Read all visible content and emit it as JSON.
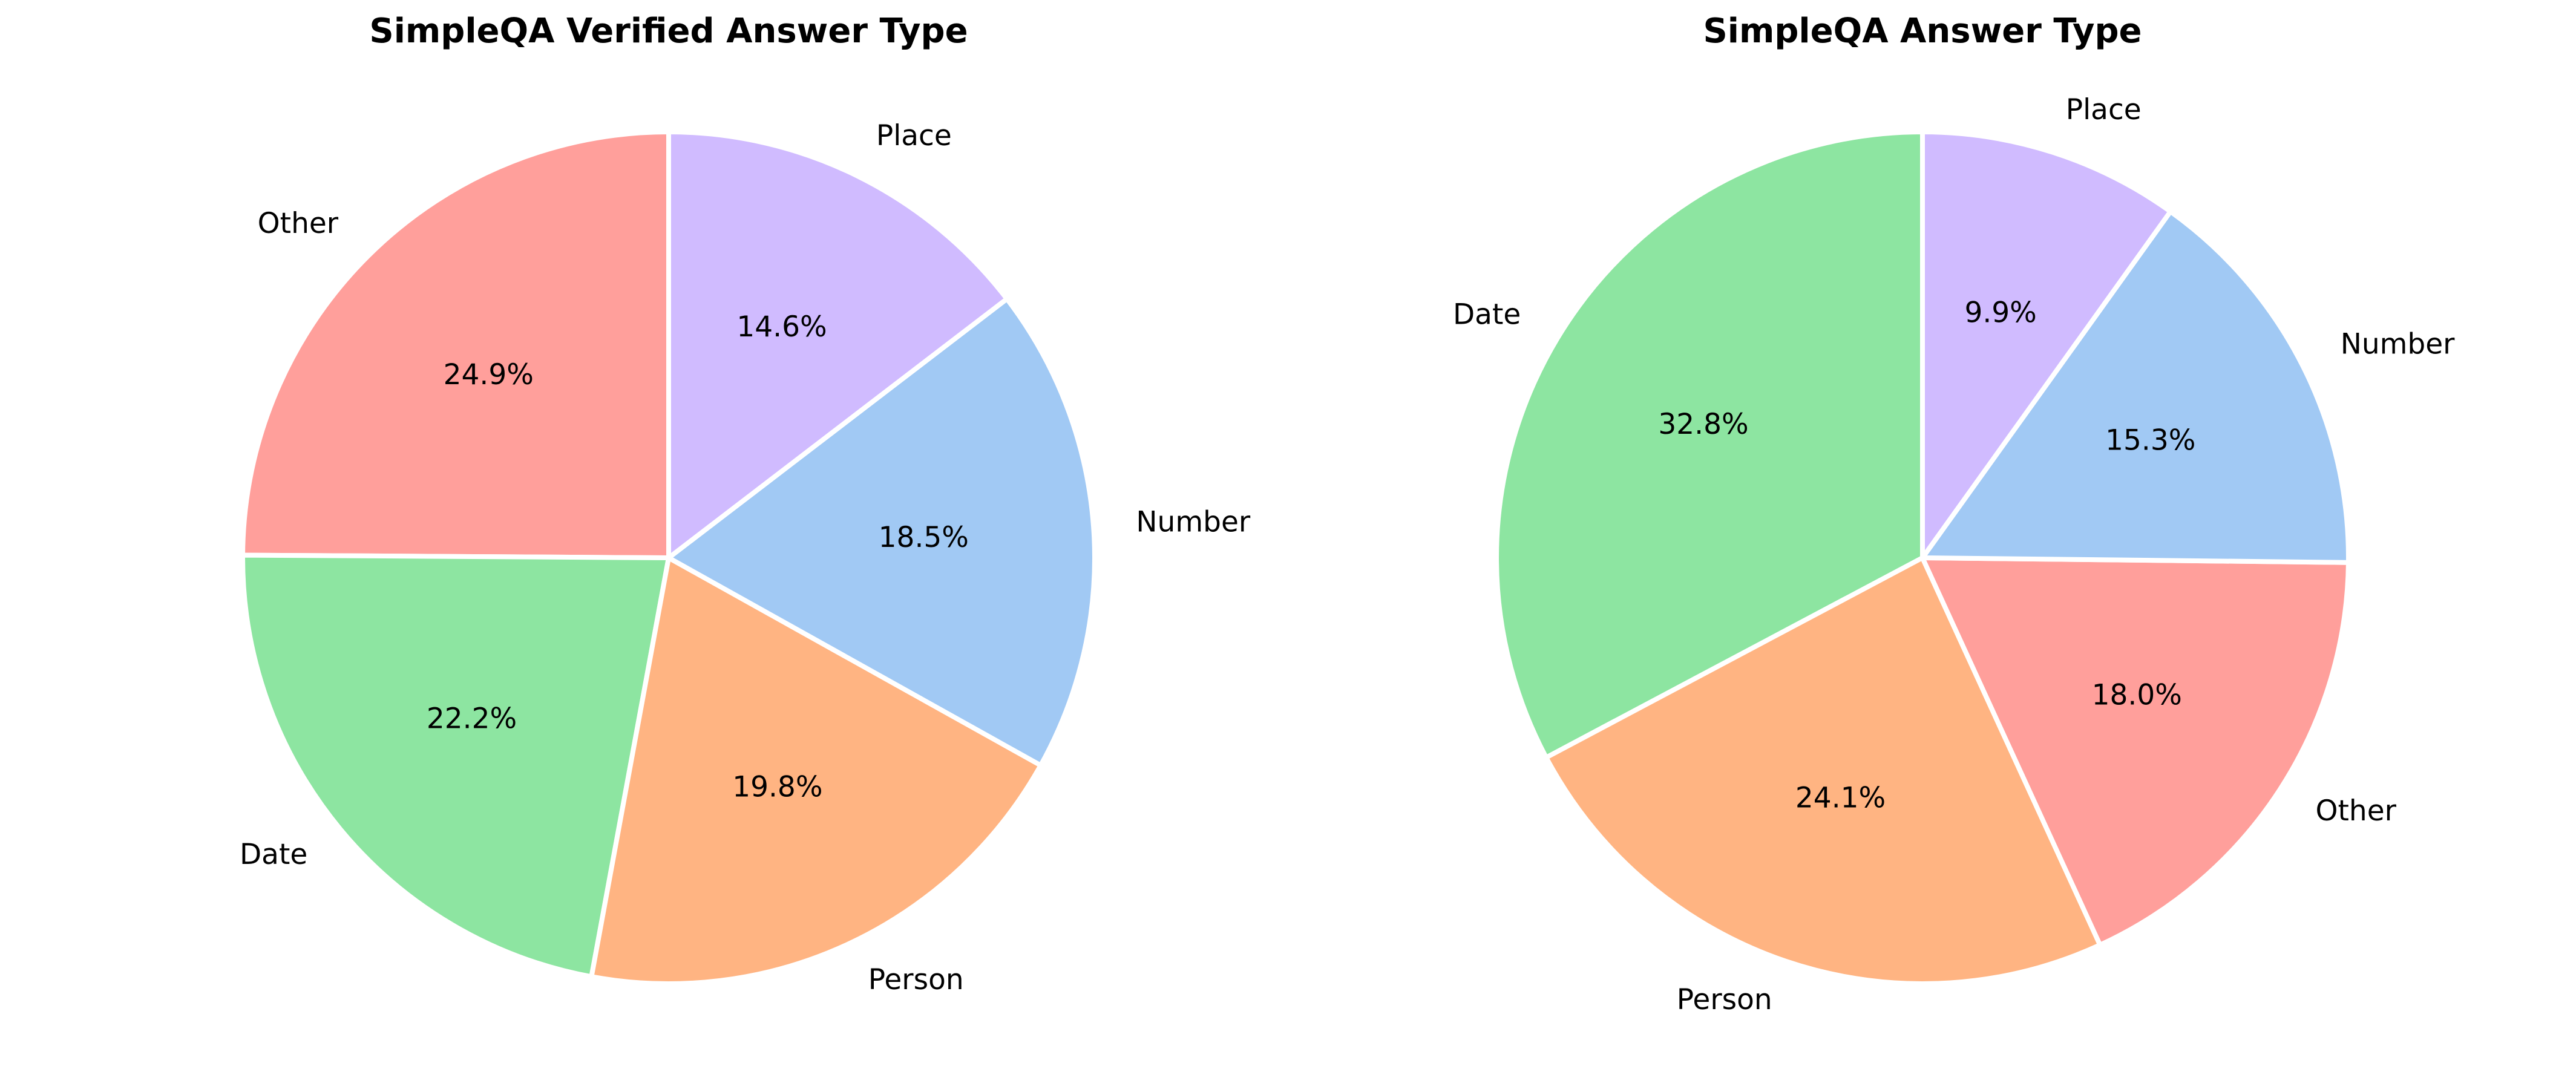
{
  "chart_data": [
    {
      "type": "pie",
      "title": "SimpleQA Verified Answer Type",
      "categories": [
        "Other",
        "Date",
        "Person",
        "Number",
        "Place"
      ],
      "values": [
        24.9,
        22.2,
        19.8,
        18.5,
        14.6
      ],
      "value_labels": [
        "24.9%",
        "22.2%",
        "19.8%",
        "18.5%",
        "14.6%"
      ],
      "colors": [
        "#ff9f9b",
        "#8de5a1",
        "#ffb482",
        "#a1c9f4",
        "#d0bbff"
      ]
    },
    {
      "type": "pie",
      "title": "SimpleQA Answer Type",
      "categories": [
        "Date",
        "Person",
        "Other",
        "Number",
        "Place"
      ],
      "values": [
        32.8,
        24.1,
        18.0,
        15.3,
        9.9
      ],
      "value_labels": [
        "32.8%",
        "24.1%",
        "18.0%",
        "15.3%",
        "9.9%"
      ],
      "colors": [
        "#8de5a1",
        "#ffb482",
        "#ff9f9b",
        "#a1c9f4",
        "#d0bbff"
      ]
    }
  ]
}
